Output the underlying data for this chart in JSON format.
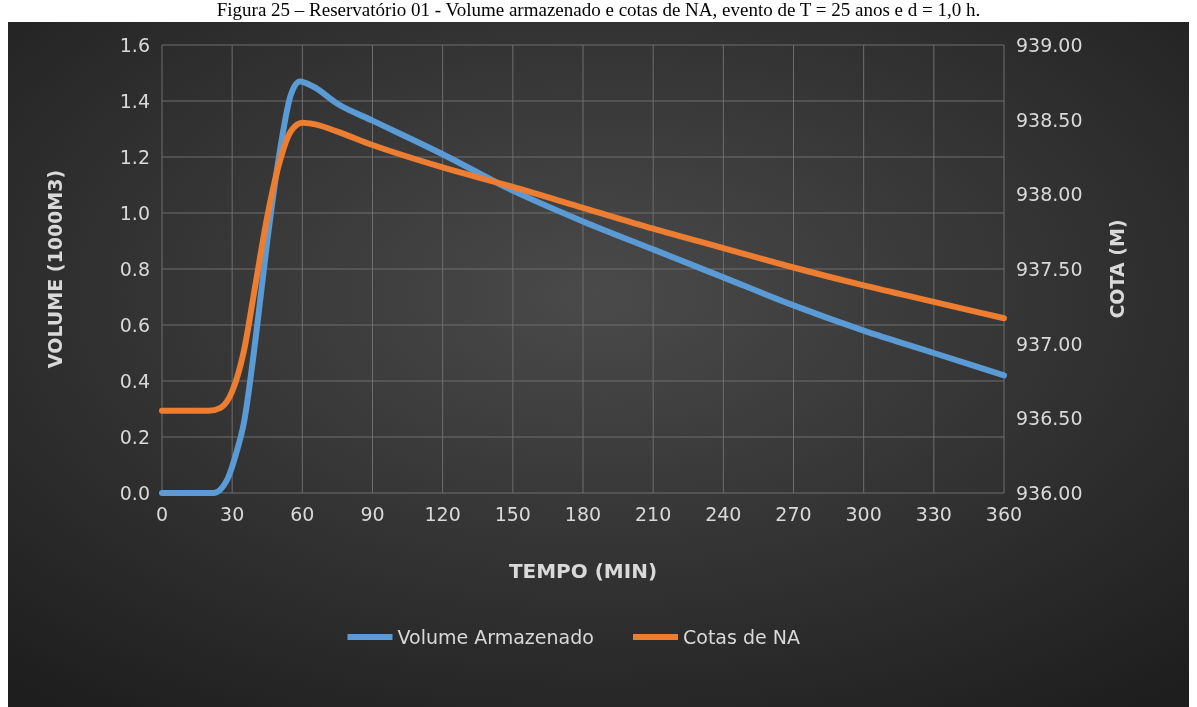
{
  "chart_data": {
    "type": "line",
    "title": "Figura 25 – Reservatório 01 - Volume armazenado e cotas de NA, evento de T = 25 anos e d = 1,0 h.",
    "xlabel": "TEMPO (MIN)",
    "ylabel": "VOLUME (1000M3)",
    "y2label": "COTA (M)",
    "xlim": [
      0,
      360
    ],
    "xticks": [
      0,
      30,
      60,
      90,
      120,
      150,
      180,
      210,
      240,
      270,
      300,
      330,
      360
    ],
    "ylim": [
      0,
      1.6
    ],
    "yticks": [
      {
        "value": 0,
        "label": "0.0"
      },
      {
        "value": 0.2,
        "label": "0.2"
      },
      {
        "value": 0.4,
        "label": "0.4"
      },
      {
        "value": 0.6,
        "label": "0.6"
      },
      {
        "value": 0.8,
        "label": "0.8"
      },
      {
        "value": 1,
        "label": "1.0"
      },
      {
        "value": 1.2,
        "label": "1.2"
      },
      {
        "value": 1.4,
        "label": "1.4"
      },
      {
        "value": 1.6,
        "label": "1.6"
      }
    ],
    "y2lim": [
      936,
      939
    ],
    "y2ticks": [
      {
        "value": 936,
        "label": "936.00"
      },
      {
        "value": 936.5,
        "label": "936.50"
      },
      {
        "value": 937,
        "label": "937.00"
      },
      {
        "value": 937.5,
        "label": "937.50"
      },
      {
        "value": 938,
        "label": "938.00"
      },
      {
        "value": 938.5,
        "label": "938.50"
      },
      {
        "value": 939,
        "label": "939.00"
      }
    ],
    "grid": true,
    "legend": "bottom",
    "marker": "none",
    "line_style": "solid",
    "series": [
      {
        "name": "Volume Armazenado",
        "color": "#5b9bd5",
        "x": [
          0,
          22,
          28,
          32,
          35,
          40,
          45,
          50,
          55,
          59,
          65,
          75,
          90,
          120,
          150,
          180,
          210,
          240,
          270,
          300,
          330,
          360
        ],
        "values": [
          0,
          0,
          0.05,
          0.15,
          0.25,
          0.55,
          0.9,
          1.2,
          1.42,
          1.47,
          1.45,
          1.39,
          1.33,
          1.21,
          1.08,
          0.97,
          0.87,
          0.77,
          0.67,
          0.58,
          0.5,
          0.42
        ]
      },
      {
        "name": "Cotas de NA",
        "color": "#ed7d31",
        "axis": "y2",
        "x": [
          0,
          20,
          25,
          30,
          35,
          40,
          45,
          50,
          55,
          60,
          65,
          75,
          90,
          120,
          150,
          180,
          210,
          240,
          270,
          300,
          330,
          360
        ],
        "values": [
          936.55,
          936.55,
          936.57,
          936.68,
          936.95,
          937.4,
          937.85,
          938.2,
          938.42,
          938.48,
          938.47,
          938.42,
          938.33,
          938.18,
          938.05,
          937.91,
          937.77,
          937.64,
          937.51,
          937.39,
          937.28,
          937.17
        ]
      }
    ]
  }
}
